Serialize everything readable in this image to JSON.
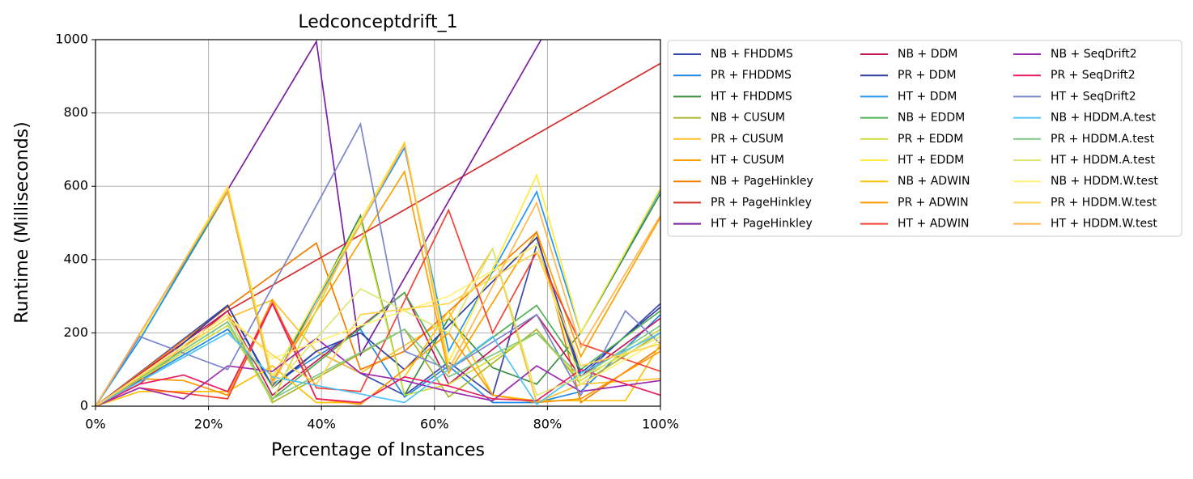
{
  "chart_data": {
    "type": "line",
    "title": "Ledconceptdrift_1",
    "x_label": "Percentage of Instances",
    "y_label": "Runtime (Milliseconds)",
    "xlim": [
      0,
      100
    ],
    "ylim": [
      0,
      1000
    ],
    "grid": true,
    "legend": "outside right",
    "xticks": [
      {
        "value": 0,
        "label": "0%"
      },
      {
        "value": 20,
        "label": "20%"
      },
      {
        "value": 40,
        "label": "40%"
      },
      {
        "value": 60,
        "label": "60%"
      },
      {
        "value": 80,
        "label": "80%"
      },
      {
        "value": 100,
        "label": "100%"
      }
    ],
    "yticks": [
      0,
      200,
      400,
      600,
      800,
      1000
    ],
    "series": [
      {
        "name": "NB + FHDDMS",
        "color": "#3949ab",
        "x": [
          0,
          23.4,
          31.3,
          39.1,
          46.9,
          54.7,
          62.5,
          70.3,
          78.1,
          85.9,
          100
        ],
        "values": [
          0,
          275,
          55,
          150,
          90,
          30,
          120,
          30,
          440,
          80,
          280
        ]
      },
      {
        "name": "PR + FHDDMS",
        "color": "#1e88e5",
        "x": [
          0,
          23.4,
          31.3,
          46.9,
          54.7,
          62.5,
          70.3,
          78.1,
          85.9,
          100
        ],
        "values": [
          0,
          210,
          60,
          210,
          25,
          110,
          10,
          10,
          40,
          250
        ]
      },
      {
        "name": "HT + FHDDMS",
        "color": "#388e3c",
        "x": [
          0,
          7.8,
          23.4,
          31.3,
          46.9,
          54.7,
          62.5,
          70.3,
          78.1,
          85.9,
          100
        ],
        "values": [
          0,
          180,
          585,
          60,
          520,
          30,
          240,
          105,
          60,
          200,
          580
        ]
      },
      {
        "name": "NB + CUSUM",
        "color": "#afb42b",
        "x": [
          0,
          23.4,
          31.3,
          54.7,
          62.5,
          78.1,
          85.9,
          100
        ],
        "values": [
          0,
          250,
          10,
          210,
          25,
          210,
          60,
          200
        ]
      },
      {
        "name": "PR + CUSUM",
        "color": "#fbc02d",
        "x": [
          0,
          23.4,
          31.3,
          39.1,
          46.9,
          62.5,
          70.3,
          78.1,
          85.9,
          100
        ],
        "values": [
          0,
          240,
          290,
          150,
          90,
          240,
          430,
          10,
          60,
          75
        ]
      },
      {
        "name": "HT + CUSUM",
        "color": "#ffa000",
        "x": [
          0,
          23.4,
          31.3,
          54.7,
          62.5,
          78.1,
          85.9,
          100
        ],
        "values": [
          0,
          585,
          70,
          640,
          90,
          475,
          135,
          515
        ]
      },
      {
        "name": "NB + PageHinkley",
        "color": "#f57c00",
        "x": [
          0,
          23.4,
          39.1,
          46.9,
          54.7,
          78.1,
          85.9,
          100
        ],
        "values": [
          0,
          270,
          445,
          100,
          150,
          475,
          10,
          160
        ]
      },
      {
        "name": "PR + PageHinkley",
        "color": "#d32f2f",
        "x": [
          0,
          7.8,
          23.4,
          100
        ],
        "values": [
          0,
          60,
          260,
          935
        ]
      },
      {
        "name": "HT + PageHinkley",
        "color": "#7b1fa2",
        "x": [
          0,
          23.4,
          39.1,
          46.9,
          80
        ],
        "values": [
          0,
          590,
          995,
          140,
          1030
        ]
      },
      {
        "name": "NB + DDM",
        "color": "#c2185b",
        "x": [
          0,
          23.4,
          31.3,
          54.7,
          62.5,
          78.1,
          85.9,
          100
        ],
        "values": [
          0,
          260,
          30,
          310,
          60,
          250,
          80,
          240
        ]
      },
      {
        "name": "PR + DDM",
        "color": "#303f9f",
        "x": [
          0,
          7.8,
          23.4,
          31.3,
          39.1,
          46.9,
          54.7,
          78.1,
          85.9,
          100
        ],
        "values": [
          0,
          70,
          275,
          50,
          150,
          200,
          100,
          460,
          90,
          270
        ]
      },
      {
        "name": "HT + DDM",
        "color": "#2196f3",
        "x": [
          0,
          7.8,
          23.4,
          31.3,
          54.7,
          62.5,
          78.1,
          85.9,
          100
        ],
        "values": [
          0,
          180,
          590,
          80,
          705,
          150,
          585,
          200,
          590
        ]
      },
      {
        "name": "NB + EDDM",
        "color": "#4caf50",
        "x": [
          0,
          23.4,
          31.3,
          54.7,
          62.5,
          78.1,
          85.9,
          100
        ],
        "values": [
          0,
          230,
          20,
          310,
          100,
          275,
          100,
          260
        ]
      },
      {
        "name": "PR + EDDM",
        "color": "#cddc39",
        "x": [
          0,
          23.4,
          31.3,
          46.9,
          54.7,
          62.5,
          78.1,
          85.9,
          100
        ],
        "values": [
          0,
          220,
          15,
          510,
          30,
          60,
          200,
          70,
          210
        ]
      },
      {
        "name": "HT + EDDM",
        "color": "#ffeb3b",
        "x": [
          0,
          7.8,
          23.4,
          31.3,
          54.7,
          62.5,
          78.1,
          85.9,
          100
        ],
        "values": [
          0,
          190,
          600,
          80,
          720,
          120,
          630,
          200,
          595
        ]
      },
      {
        "name": "NB + ADWIN",
        "color": "#ffc107",
        "x": [
          0,
          7.8,
          23.4,
          31.3,
          39.1,
          46.9,
          54.7,
          62.5,
          70.3,
          78.1,
          85.9,
          93.8,
          100
        ],
        "values": [
          0,
          40,
          40,
          110,
          10,
          10,
          80,
          260,
          30,
          15,
          15,
          15,
          170
        ]
      },
      {
        "name": "PR + ADWIN",
        "color": "#ff9800",
        "x": [
          0,
          7.8,
          15.6,
          23.4,
          31.3,
          39.1,
          46.9,
          54.7,
          62.5,
          70.3,
          78.1,
          85.9,
          100
        ],
        "values": [
          0,
          75,
          70,
          30,
          290,
          20,
          5,
          100,
          200,
          30,
          10,
          20,
          150
        ]
      },
      {
        "name": "HT + ADWIN",
        "color": "#f44336",
        "x": [
          0,
          7.8,
          23.4,
          31.3,
          39.1,
          46.9,
          62.5,
          70.3,
          78.1,
          85.9,
          100
        ],
        "values": [
          0,
          50,
          20,
          280,
          50,
          40,
          535,
          200,
          420,
          170,
          95
        ]
      },
      {
        "name": "NB + SeqDrift2",
        "color": "#9c27b0",
        "x": [
          0,
          7.8,
          15.6,
          23.4,
          31.3,
          39.1,
          46.9,
          54.7,
          62.5,
          70.3,
          78.1,
          85.9,
          100
        ],
        "values": [
          0,
          50,
          20,
          110,
          95,
          185,
          90,
          70,
          40,
          15,
          110,
          40,
          70
        ]
      },
      {
        "name": "PR + SeqDrift2",
        "color": "#e91e63",
        "x": [
          0,
          7.8,
          15.6,
          23.4,
          31.3,
          39.1,
          46.9,
          54.7,
          62.5,
          70.3,
          78.1,
          85.9,
          100
        ],
        "values": [
          0,
          60,
          85,
          40,
          280,
          20,
          10,
          80,
          55,
          20,
          15,
          100,
          30
        ]
      },
      {
        "name": "HT + SeqDrift2",
        "color": "#7986cb",
        "x": [
          0,
          7.8,
          23.4,
          46.9,
          54.7,
          62.5,
          78.1,
          85.9,
          93.8,
          100
        ],
        "values": [
          0,
          190,
          100,
          770,
          150,
          100,
          250,
          30,
          260,
          170
        ]
      },
      {
        "name": "NB + HDDM.A.test",
        "color": "#4fc3f7",
        "x": [
          0,
          23.4,
          31.3,
          54.7,
          62.5,
          70.3,
          78.1,
          85.9,
          100
        ],
        "values": [
          0,
          200,
          80,
          10,
          100,
          190,
          5,
          90,
          200
        ]
      },
      {
        "name": "PR + HDDM.A.test",
        "color": "#81c784",
        "x": [
          0,
          23.4,
          31.3,
          54.7,
          62.5,
          78.1,
          85.9,
          100
        ],
        "values": [
          0,
          230,
          20,
          210,
          80,
          200,
          80,
          220
        ]
      },
      {
        "name": "HT + HDDM.A.test",
        "color": "#dce775",
        "x": [
          0,
          23.4,
          31.3,
          46.9,
          62.5,
          70.3,
          78.1,
          85.9,
          100
        ],
        "values": [
          0,
          240,
          50,
          320,
          200,
          430,
          30,
          80,
          190
        ]
      },
      {
        "name": "NB + HDDM.W.test",
        "color": "#fff176",
        "x": [
          0,
          23.4,
          31.3,
          46.9,
          62.5,
          78.1,
          85.9,
          100
        ],
        "values": [
          0,
          250,
          130,
          220,
          300,
          440,
          60,
          180
        ]
      },
      {
        "name": "PR + HDDM.W.test",
        "color": "#ffd54f",
        "x": [
          0,
          23.4,
          31.3,
          39.1,
          46.9,
          62.5,
          78.1,
          85.9,
          100
        ],
        "values": [
          0,
          240,
          140,
          60,
          250,
          280,
          420,
          110,
          170
        ]
      },
      {
        "name": "HT + HDDM.W.test",
        "color": "#ffb74d",
        "x": [
          0,
          23.4,
          31.3,
          54.7,
          62.5,
          78.1,
          85.9,
          100
        ],
        "values": [
          0,
          590,
          60,
          715,
          100,
          555,
          160,
          520
        ]
      }
    ]
  }
}
